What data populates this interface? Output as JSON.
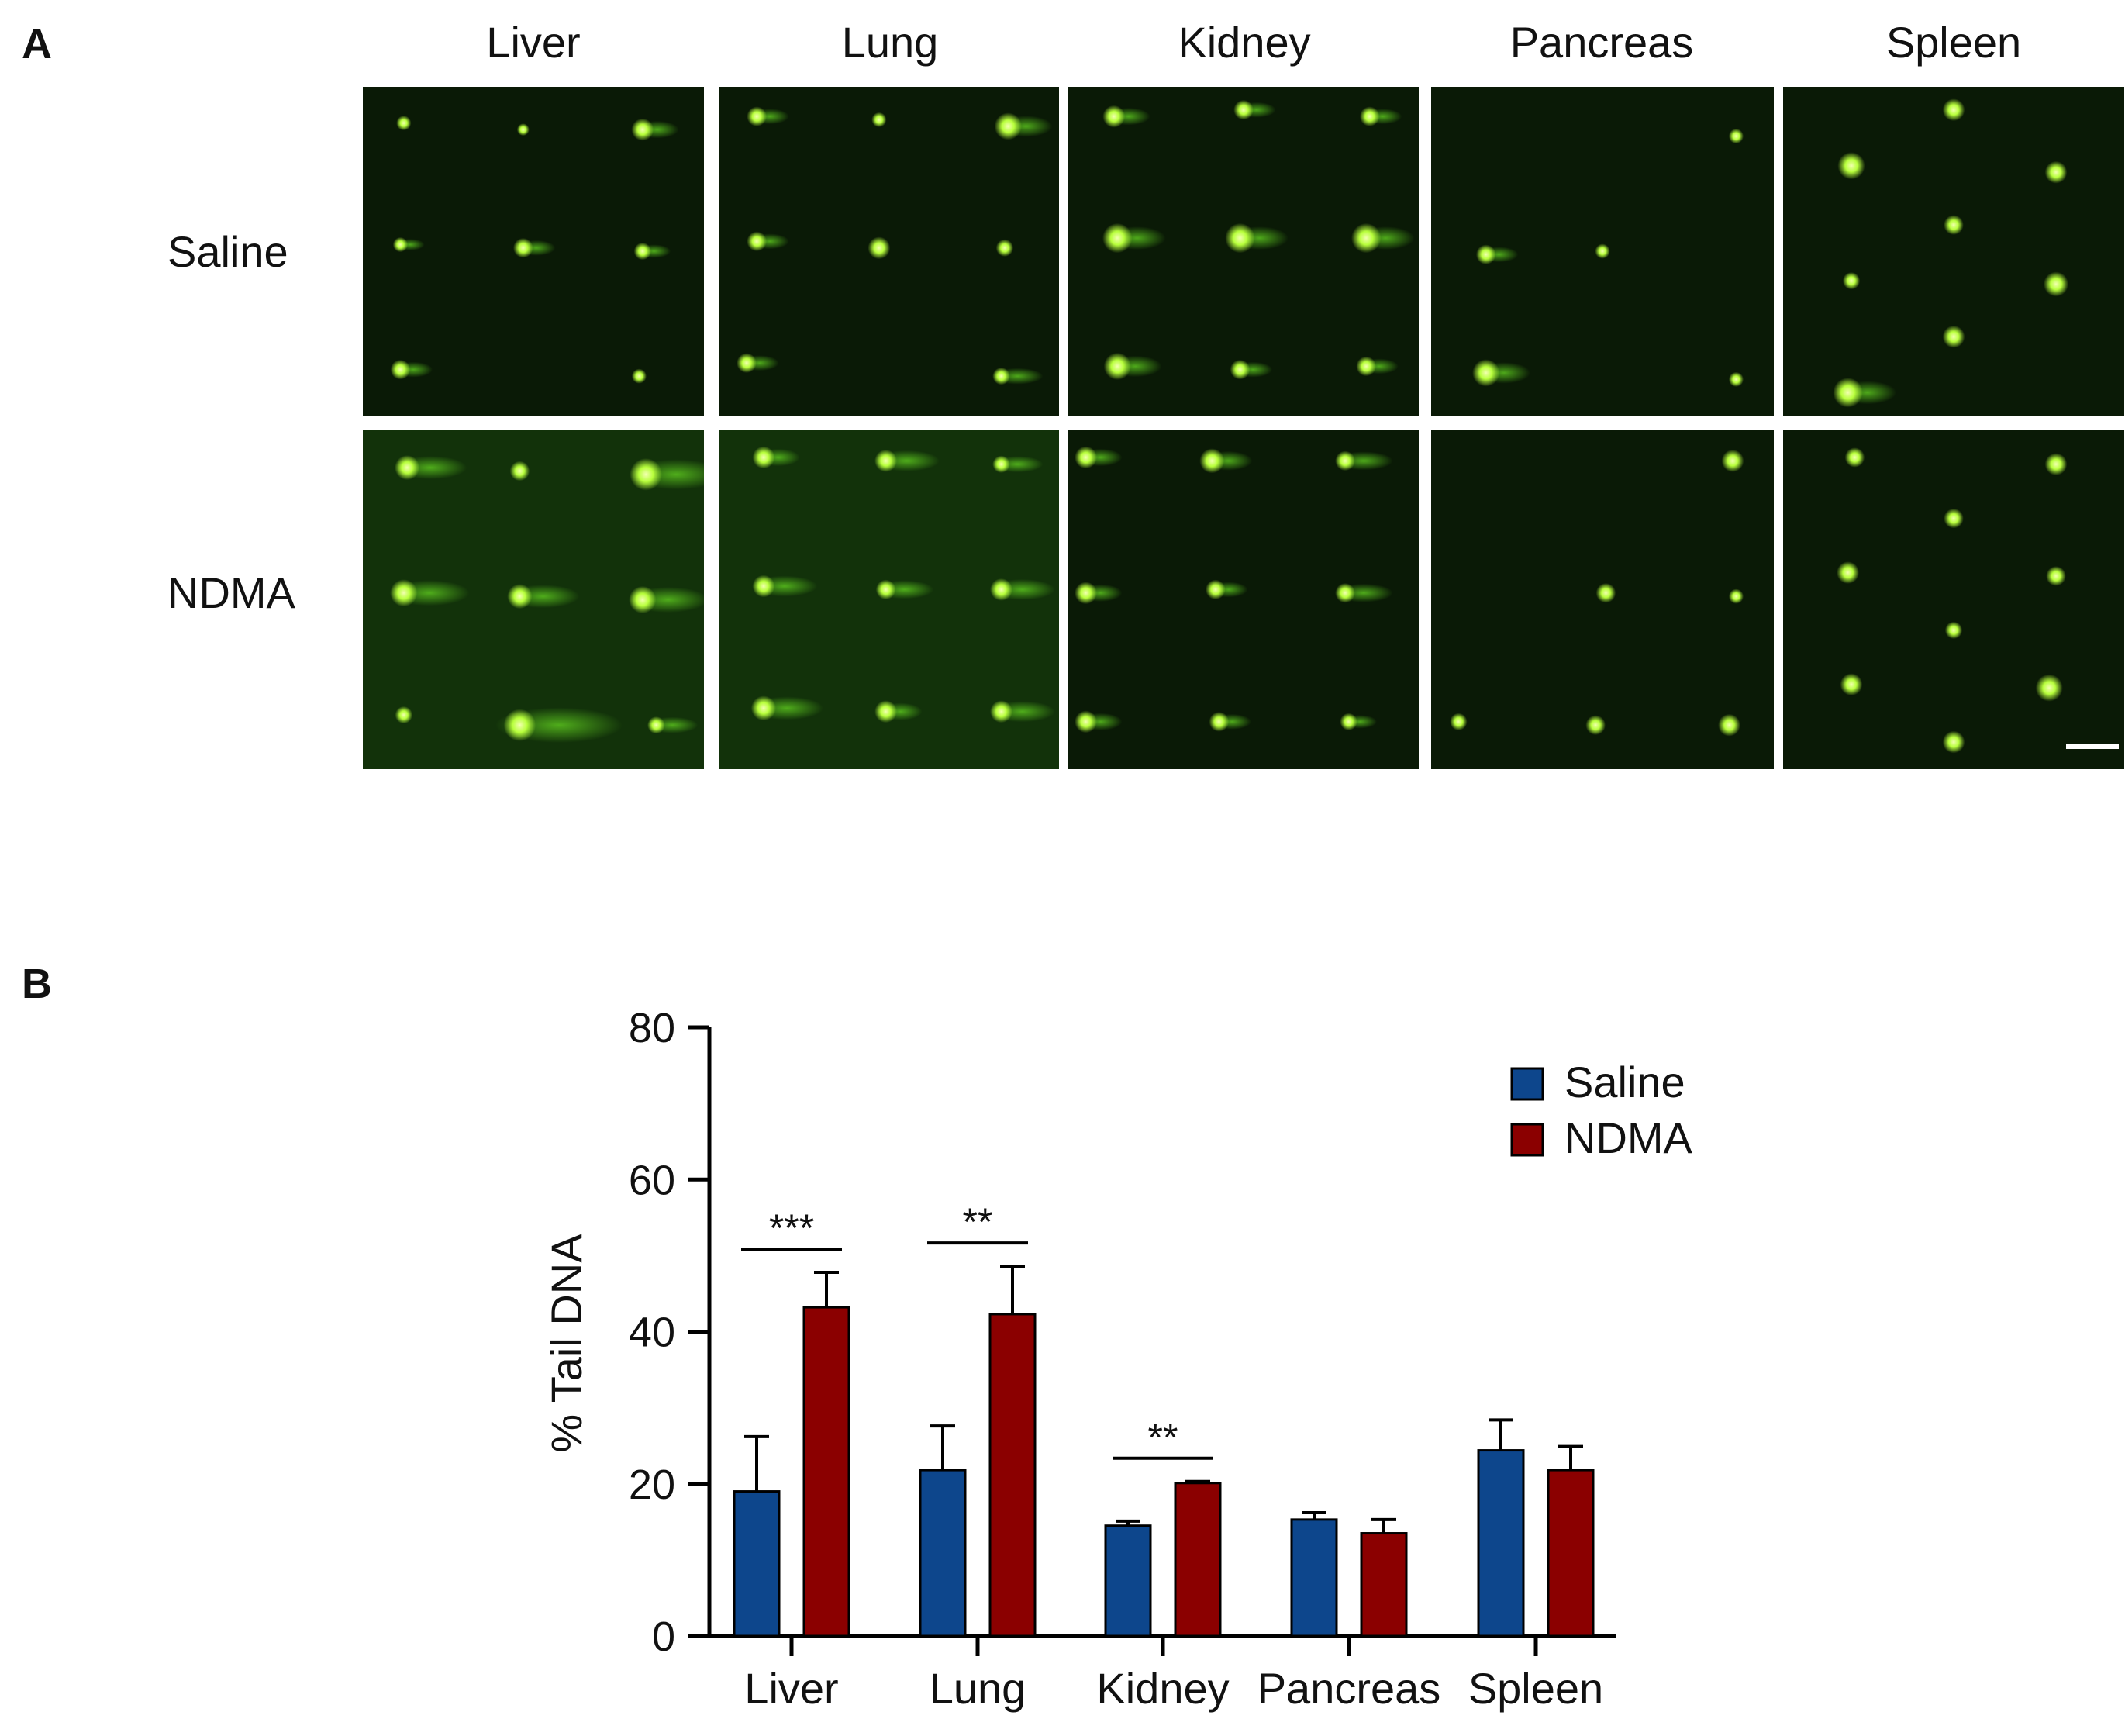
{
  "panel_a": {
    "label": "A",
    "columns": [
      "Liver",
      "Lung",
      "Kidney",
      "Pancreas",
      "Spleen"
    ],
    "rows": [
      "Saline",
      "NDMA"
    ],
    "background_color": "#0a1a06",
    "nucleus_color": "#b8ff3c",
    "tail_color": "#5ac21e",
    "scale_bar_color": "#ffffff"
  },
  "panel_b": {
    "label": "B"
  },
  "chart_data": {
    "type": "bar",
    "categories": [
      "Liver",
      "Lung",
      "Kidney",
      "Pancreas",
      "Spleen"
    ],
    "series": [
      {
        "name": "Saline",
        "color": "#0d468c",
        "values": [
          19,
          21.8,
          14.5,
          15.3,
          24.4
        ],
        "errors": [
          7.2,
          5.8,
          0.6,
          0.9,
          4.0
        ]
      },
      {
        "name": "NDMA",
        "color": "#8b0000",
        "values": [
          43.2,
          42.3,
          20.1,
          13.5,
          21.8
        ],
        "errors": [
          4.6,
          6.3,
          0.2,
          1.8,
          3.1
        ]
      }
    ],
    "ylabel": "% Tail DNA",
    "xlabel": "",
    "ylim": [
      0,
      80
    ],
    "yticks": [
      "0",
      "20",
      "40",
      "60",
      "80"
    ],
    "significance": [
      {
        "category": "Liver",
        "label": "***"
      },
      {
        "category": "Lung",
        "label": "**"
      },
      {
        "category": "Kidney",
        "label": "**"
      }
    ],
    "legend_position": "top-right",
    "grid": false
  }
}
